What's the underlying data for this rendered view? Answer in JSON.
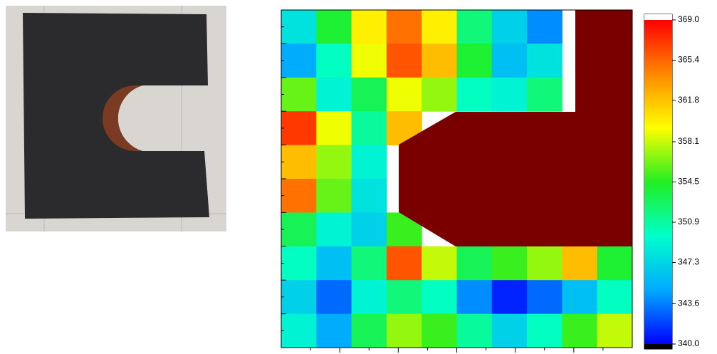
{
  "chart_data": {
    "type": "contour",
    "zlim": [
      340,
      369
    ],
    "zticks": [
      {
        "value": 340,
        "label": "340.0"
      },
      343.6,
      347.3,
      350.9,
      354.5,
      358.1,
      361.8,
      365.4,
      {
        "value": 369,
        "label": "369.0"
      }
    ],
    "colormap": [
      "#0000ff",
      "#00aaff",
      "#00ffcc",
      "#22ee22",
      "#ffff00",
      "#ff8800",
      "#ff0000"
    ],
    "over_color": "#ffffff",
    "under_color": "#000000",
    "mask_color": "#7a0000",
    "grid": [
      [
        348,
        354,
        360,
        365,
        360,
        352,
        347,
        344,
        null,
        null
      ],
      [
        345,
        350,
        359,
        366,
        362,
        354,
        346,
        348,
        null,
        null
      ],
      [
        356,
        349,
        353,
        359,
        357,
        350,
        349,
        352,
        null,
        null
      ],
      [
        367,
        359,
        351,
        362,
        null,
        null,
        null,
        null,
        null,
        null
      ],
      [
        362,
        357,
        349,
        null,
        null,
        null,
        null,
        null,
        null,
        null
      ],
      [
        365,
        356,
        348,
        null,
        null,
        null,
        null,
        null,
        null,
        null
      ],
      [
        353,
        349,
        347,
        355,
        null,
        null,
        null,
        null,
        null,
        null
      ],
      [
        350,
        346,
        352,
        366,
        358,
        353,
        355,
        357,
        362,
        354
      ],
      [
        347,
        343,
        349,
        352,
        350,
        344,
        341,
        343,
        346,
        350
      ],
      [
        349,
        345,
        353,
        357,
        355,
        351,
        347,
        350,
        355,
        358
      ]
    ]
  }
}
